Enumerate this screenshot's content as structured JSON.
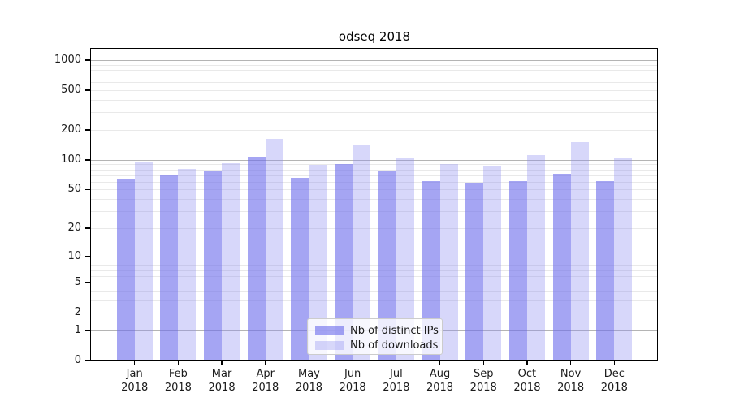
{
  "title": "odseq 2018",
  "chart_data": {
    "type": "bar",
    "title": "odseq 2018",
    "categories": [
      "Jan",
      "Feb",
      "Mar",
      "Apr",
      "May",
      "Jun",
      "Jul",
      "Aug",
      "Sep",
      "Oct",
      "Nov",
      "Dec"
    ],
    "year_label": "2018",
    "series": [
      {
        "name": "Nb of distinct IPs",
        "color": "rgba(110,110,235,0.62)",
        "values": [
          63,
          70,
          77,
          107,
          66,
          91,
          78,
          61,
          59,
          61,
          73,
          61
        ]
      },
      {
        "name": "Nb of downloads",
        "color": "rgba(140,140,240,0.35)",
        "values": [
          95,
          81,
          92,
          164,
          89,
          139,
          106,
          90,
          86,
          112,
          151,
          105
        ]
      }
    ],
    "yscale": "log1p",
    "ylim": [
      0,
      1300
    ],
    "yticks": [
      0,
      1,
      2,
      5,
      10,
      20,
      50,
      100,
      200,
      500,
      1000
    ],
    "grid": {
      "major": [
        1,
        10,
        100,
        1000
      ],
      "minor": [
        2,
        3,
        4,
        5,
        6,
        7,
        8,
        9,
        20,
        30,
        40,
        50,
        60,
        70,
        80,
        90,
        200,
        300,
        400,
        500,
        600,
        700,
        800,
        900
      ]
    },
    "legend_position": "lower-center",
    "xlabel": "",
    "ylabel": ""
  }
}
